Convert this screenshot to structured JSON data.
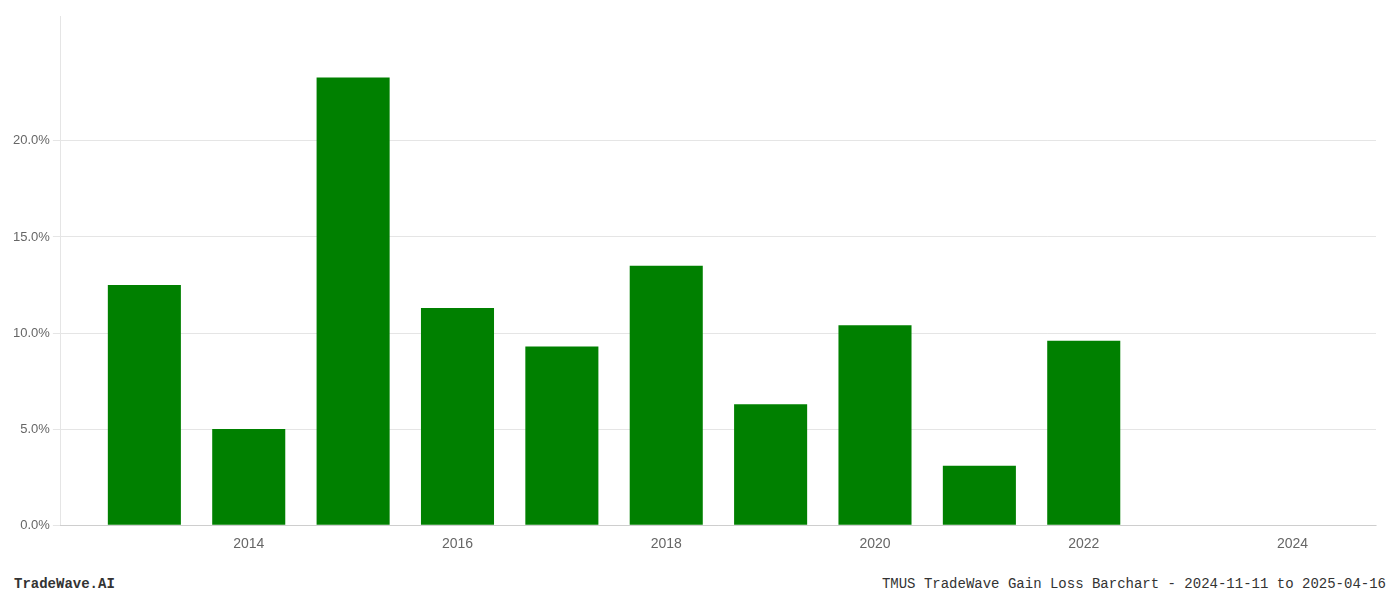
{
  "chart_data": {
    "type": "bar",
    "x": [
      2013,
      2014,
      2015,
      2016,
      2017,
      2018,
      2019,
      2020,
      2021,
      2022
    ],
    "values": [
      0.125,
      0.05,
      0.233,
      0.113,
      0.093,
      0.135,
      0.063,
      0.104,
      0.031,
      0.096
    ],
    "color": "#008000",
    "xlim": [
      2012.2,
      2024.8
    ],
    "xticks": [
      2014,
      2016,
      2018,
      2020,
      2022,
      2024
    ],
    "ylim": [
      0.0,
      0.265
    ],
    "yticks": [
      {
        "value": 0.0,
        "label": "0.0%"
      },
      {
        "value": 0.05,
        "label": "5.0%"
      },
      {
        "value": 0.1,
        "label": "10.0%"
      },
      {
        "value": 0.15,
        "label": "15.0%"
      },
      {
        "value": 0.2,
        "label": "20.0%"
      }
    ],
    "grid": "y",
    "annotations": [
      "TradeWave.AI",
      "TMUS TradeWave Gain Loss Barchart - 2024-11-11 to 2025-04-16"
    ]
  }
}
